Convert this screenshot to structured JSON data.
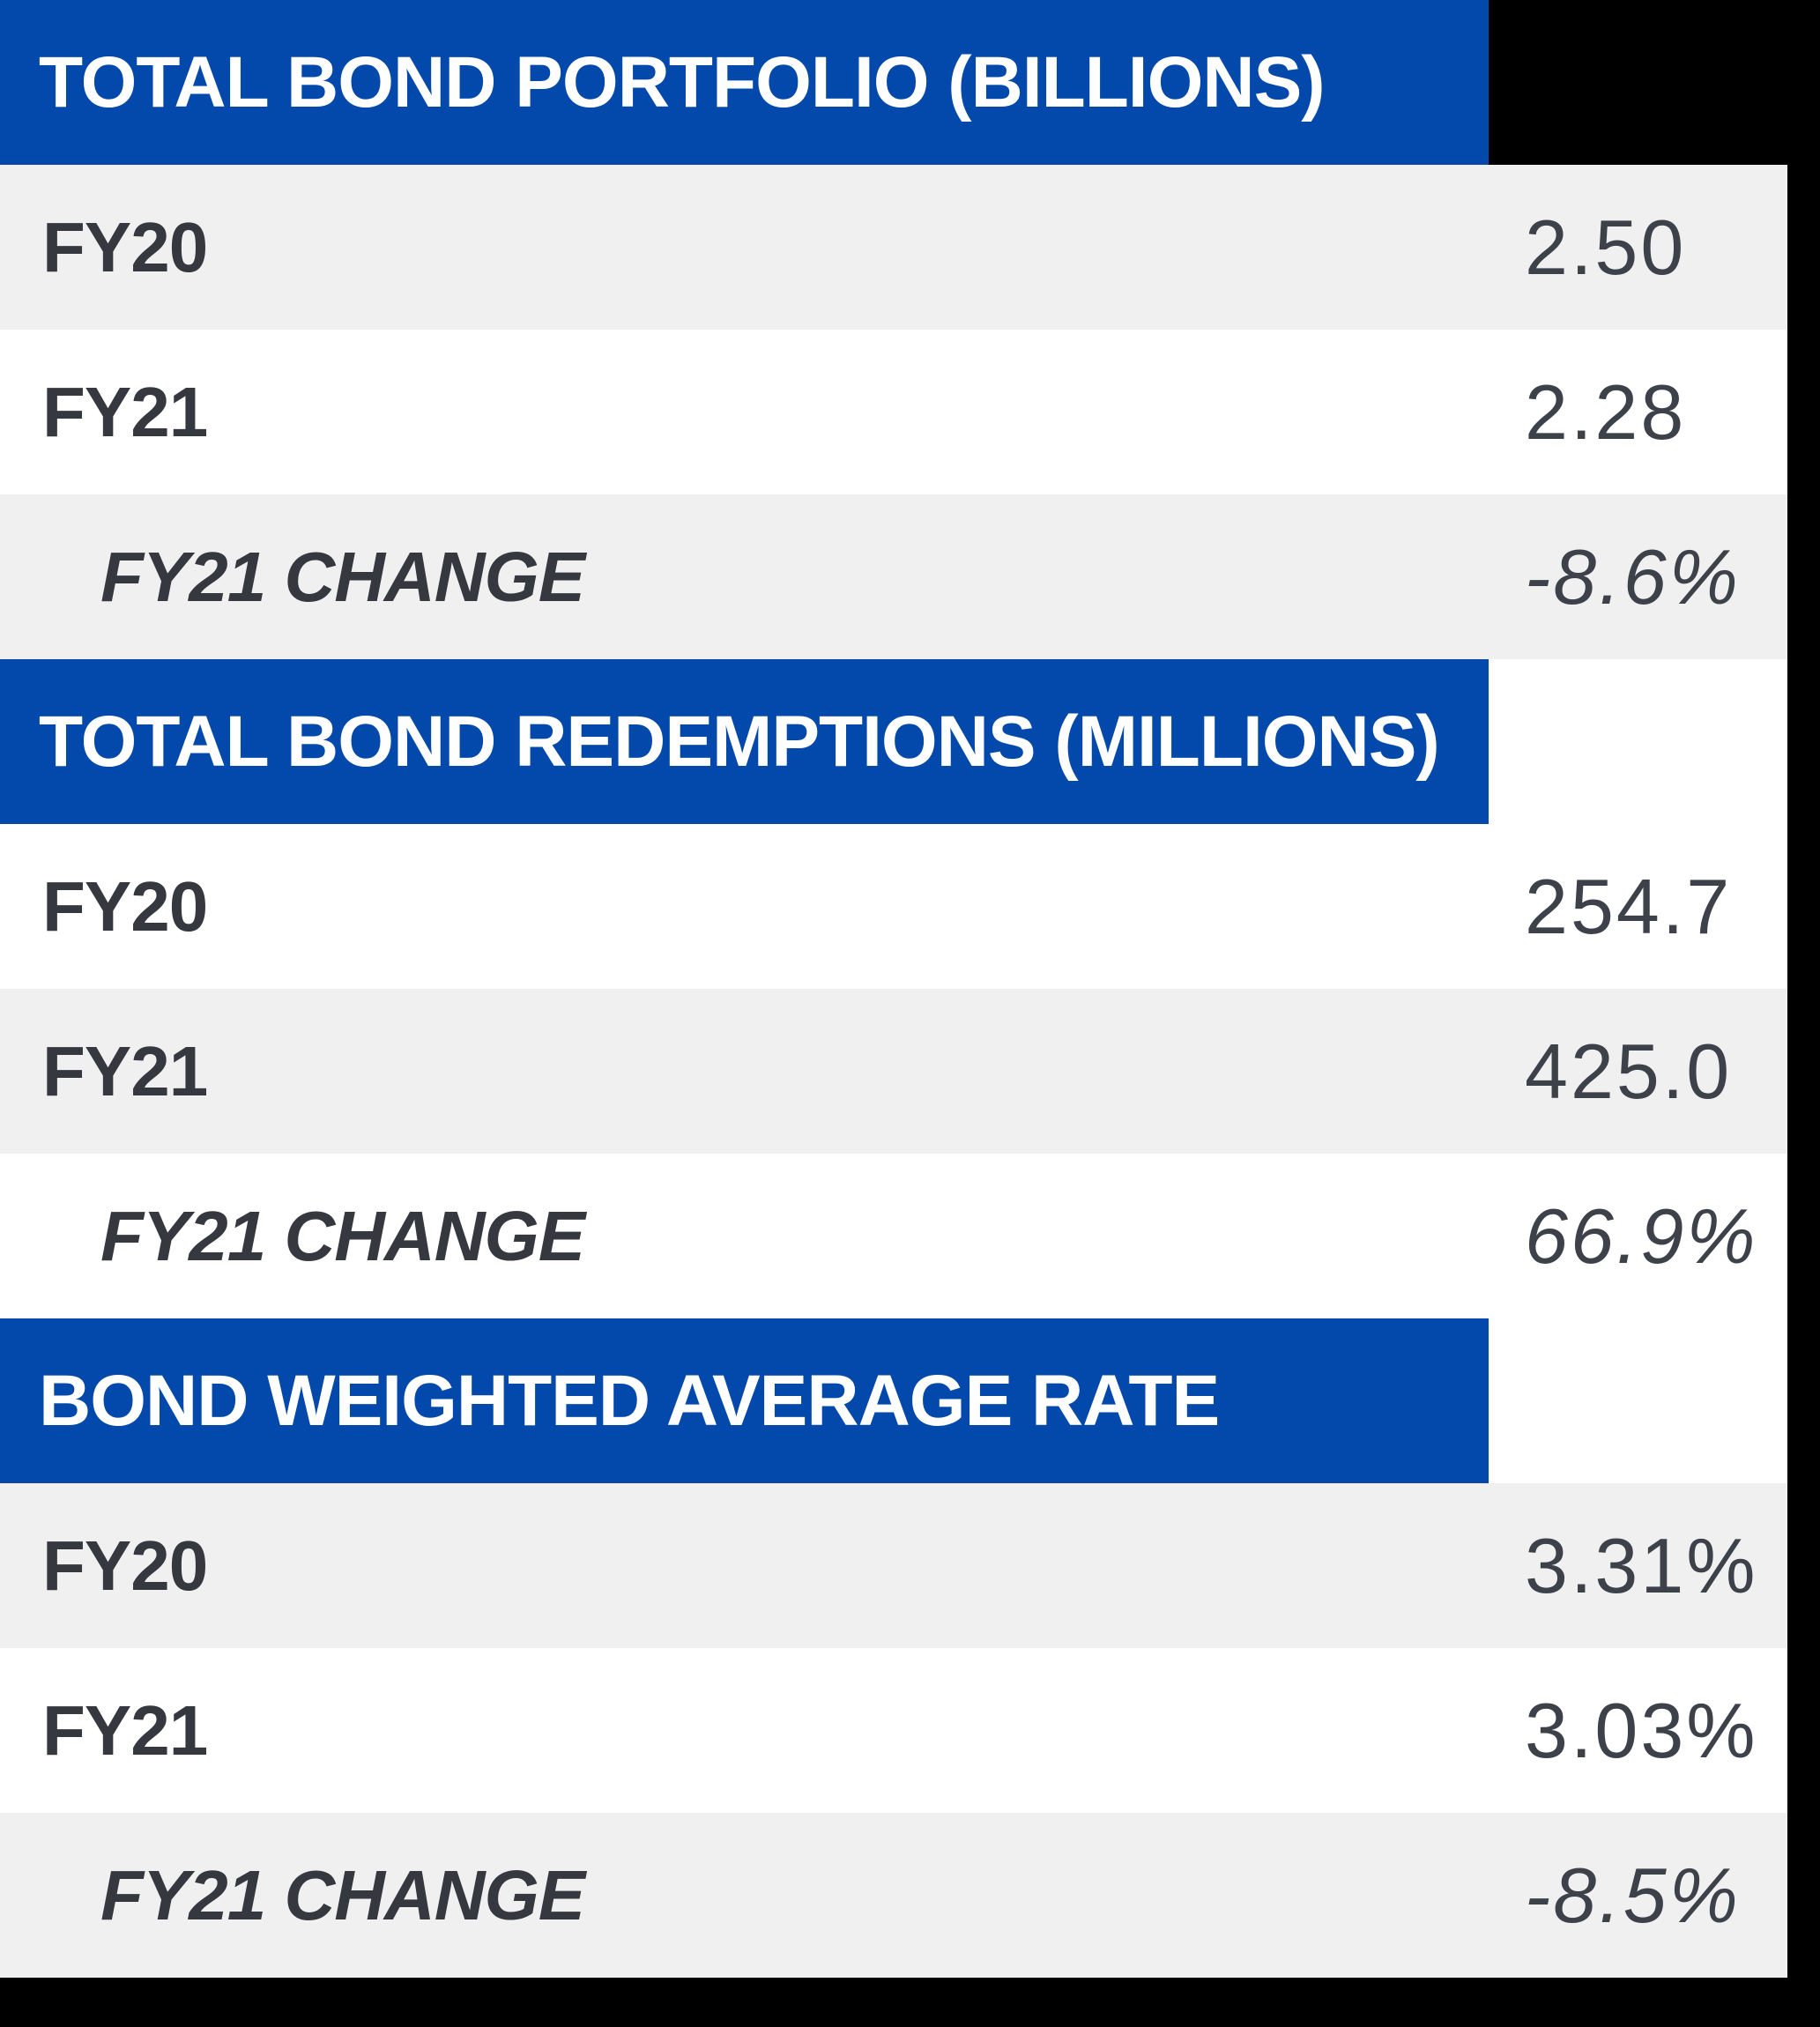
{
  "chart_data": {
    "type": "table",
    "sections": [
      {
        "header": "TOTAL BOND PORTFOLIO (BILLIONS)",
        "rows": [
          {
            "label": "FY20",
            "value": "2.50"
          },
          {
            "label": "FY21",
            "value": "2.28"
          },
          {
            "label": "FY21 CHANGE",
            "value": "-8.6%"
          }
        ]
      },
      {
        "header": "TOTAL BOND REDEMPTIONS (MILLIONS)",
        "rows": [
          {
            "label": "FY20",
            "value": "254.7"
          },
          {
            "label": "FY21",
            "value": "425.0"
          },
          {
            "label": "FY21 CHANGE",
            "value": "66.9%"
          }
        ]
      },
      {
        "header": "BOND WEIGHTED AVERAGE RATE",
        "rows": [
          {
            "label": "FY20",
            "value": "3.31%"
          },
          {
            "label": "FY21",
            "value": "3.03%"
          },
          {
            "label": "FY21 CHANGE",
            "value": "-8.5%"
          }
        ]
      }
    ],
    "layout": {
      "legend": "none",
      "grid": "off",
      "row_striping": "alternating gray/white across data rows, headers interleaved"
    }
  },
  "colors": {
    "accent_blue": "#0349ac",
    "background_black": "#000000",
    "row_stripe_gray": "#f0f0f1",
    "row_white": "#ffffff",
    "header_text": "#ffffff",
    "label_text": "#35393f",
    "value_text": "#3d424a"
  }
}
